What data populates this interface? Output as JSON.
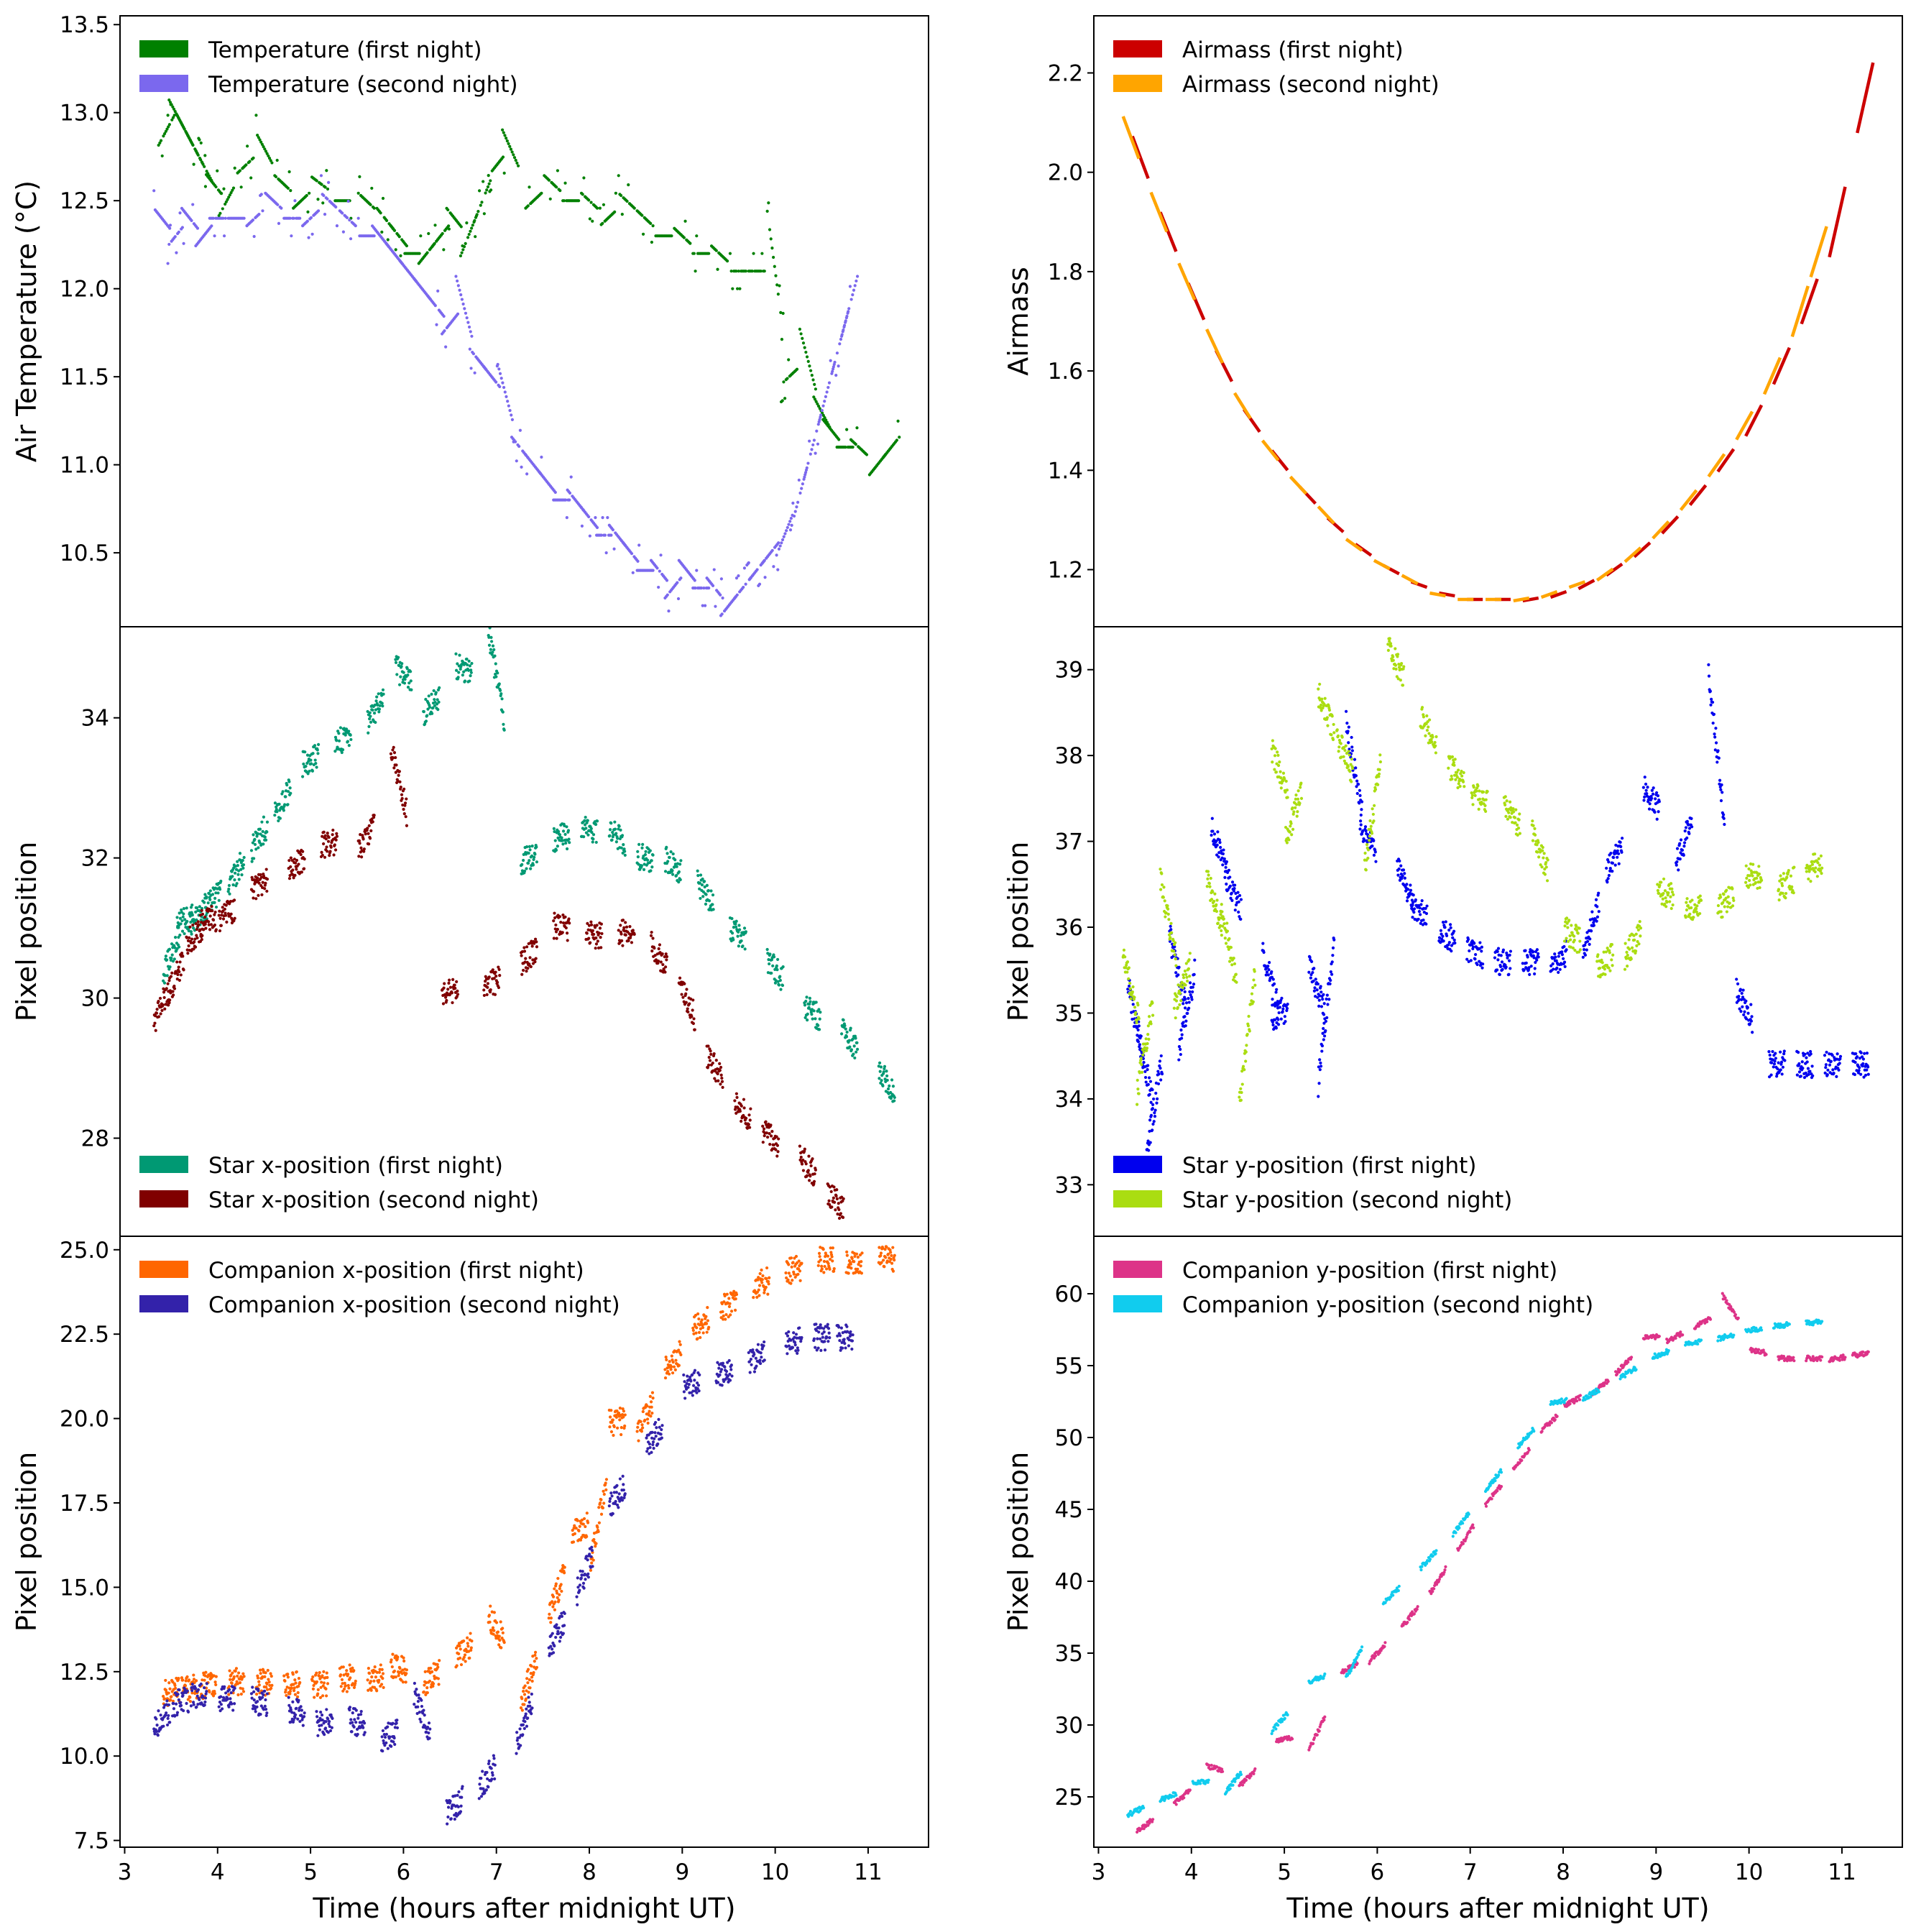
{
  "figure": {
    "xlabel": "Time (hours after midnight UT)",
    "x_ticks": [
      3,
      4,
      5,
      6,
      7,
      8,
      9,
      10,
      11
    ],
    "x_range": [
      2.95,
      11.65
    ]
  },
  "chart_data": [
    {
      "id": "temperature",
      "type": "scatter",
      "ylabel": "Air Temperature (°C)",
      "ylim": [
        10.08,
        13.55
      ],
      "y_ticks": [
        10.5,
        11.0,
        11.5,
        12.0,
        12.5,
        13.0,
        13.5
      ],
      "legend_position": "top-left",
      "series": [
        {
          "name": "Temperature (first night)",
          "color": "#008000",
          "x": [
            3.45,
            3.55,
            3.65,
            3.75,
            3.85,
            3.95,
            4.1,
            4.3,
            4.5,
            4.7,
            4.9,
            5.1,
            5.35,
            5.6,
            5.8,
            5.95,
            6.1,
            6.25,
            6.4,
            6.55,
            6.7,
            6.85,
            7.0,
            7.15,
            7.4,
            7.6,
            7.8,
            8.0,
            8.2,
            8.4,
            8.6,
            8.8,
            9.0,
            9.2,
            9.4,
            9.6,
            9.8,
            10.0,
            10.15,
            10.35,
            10.5,
            10.6,
            10.75,
            10.9,
            11.1,
            11.25
          ],
          "y": [
            12.9,
            13.0,
            12.9,
            12.8,
            12.7,
            12.6,
            12.5,
            12.7,
            12.8,
            12.6,
            12.5,
            12.6,
            12.5,
            12.5,
            12.4,
            12.3,
            12.2,
            12.2,
            12.3,
            12.4,
            12.3,
            12.5,
            12.7,
            12.8,
            12.5,
            12.6,
            12.5,
            12.5,
            12.4,
            12.5,
            12.4,
            12.3,
            12.3,
            12.2,
            12.2,
            12.1,
            12.1,
            12.1,
            11.5,
            11.6,
            11.3,
            11.2,
            11.1,
            11.1,
            11.0,
            11.1
          ]
        },
        {
          "name": "Temperature (second night)",
          "color": "#7b68ee",
          "x": [
            3.4,
            3.55,
            3.7,
            3.85,
            4.0,
            4.2,
            4.4,
            4.6,
            4.8,
            5.0,
            5.2,
            5.4,
            5.6,
            5.75,
            5.9,
            6.05,
            6.2,
            6.35,
            6.5,
            6.65,
            6.8,
            6.95,
            7.1,
            7.25,
            7.4,
            7.55,
            7.7,
            7.85,
            8.0,
            8.15,
            8.3,
            8.45,
            8.6,
            8.75,
            8.9,
            9.05,
            9.2,
            9.35,
            9.5,
            9.65,
            9.8,
            9.95,
            10.1,
            10.25,
            10.4,
            10.55,
            10.7,
            10.8
          ],
          "y": [
            12.4,
            12.3,
            12.4,
            12.3,
            12.4,
            12.4,
            12.4,
            12.5,
            12.4,
            12.4,
            12.5,
            12.4,
            12.3,
            12.3,
            12.2,
            12.1,
            12.0,
            11.9,
            11.8,
            11.9,
            11.6,
            11.5,
            11.4,
            11.1,
            11.0,
            10.9,
            10.8,
            10.8,
            10.7,
            10.6,
            10.6,
            10.5,
            10.4,
            10.4,
            10.3,
            10.4,
            10.3,
            10.3,
            10.2,
            10.3,
            10.4,
            10.5,
            10.6,
            10.8,
            11.1,
            11.4,
            11.7,
            11.9
          ]
        }
      ]
    },
    {
      "id": "airmass",
      "type": "line",
      "ylabel": "Airmass",
      "ylim": [
        1.085,
        2.315
      ],
      "y_ticks": [
        1.2,
        1.4,
        1.6,
        1.8,
        2.0,
        2.2
      ],
      "legend_position": "top-left",
      "series": [
        {
          "name": "Airmass (first night)",
          "color": "#cc0000",
          "x": [
            3.45,
            3.75,
            4.05,
            4.35,
            4.65,
            4.95,
            5.25,
            5.55,
            5.85,
            6.15,
            6.45,
            6.75,
            7.05,
            7.35,
            7.65,
            7.95,
            8.25,
            8.55,
            8.85,
            9.15,
            9.45,
            9.75,
            10.05,
            10.35,
            10.65,
            10.95,
            11.25
          ],
          "y": [
            2.03,
            1.88,
            1.74,
            1.61,
            1.5,
            1.42,
            1.35,
            1.29,
            1.24,
            1.2,
            1.17,
            1.15,
            1.14,
            1.14,
            1.14,
            1.15,
            1.17,
            1.2,
            1.24,
            1.29,
            1.35,
            1.42,
            1.5,
            1.61,
            1.74,
            1.9,
            2.15
          ]
        },
        {
          "name": "Airmass (second night)",
          "color": "#ffa500",
          "x": [
            3.35,
            3.65,
            3.95,
            4.25,
            4.55,
            4.85,
            5.15,
            5.45,
            5.75,
            6.05,
            6.35,
            6.65,
            6.95,
            7.25,
            7.55,
            7.85,
            8.15,
            8.45,
            8.75,
            9.05,
            9.35,
            9.65,
            9.95,
            10.25,
            10.55,
            10.75
          ],
          "y": [
            2.07,
            1.92,
            1.78,
            1.65,
            1.53,
            1.44,
            1.37,
            1.31,
            1.25,
            1.21,
            1.18,
            1.15,
            1.14,
            1.14,
            1.14,
            1.15,
            1.17,
            1.19,
            1.23,
            1.28,
            1.34,
            1.41,
            1.49,
            1.59,
            1.72,
            1.84
          ]
        }
      ]
    },
    {
      "id": "star_x",
      "type": "scatter",
      "ylabel": "Pixel position",
      "ylim": [
        26.6,
        35.3
      ],
      "y_ticks": [
        28,
        30,
        32,
        34
      ],
      "legend_position": "bottom-left",
      "series": [
        {
          "name": "Star x-position (first night)",
          "color": "#009973",
          "x": [
            3.5,
            3.65,
            3.8,
            3.95,
            4.2,
            4.45,
            4.7,
            5.0,
            5.35,
            5.7,
            6.0,
            6.3,
            6.65,
            7.0,
            7.35,
            7.7,
            8.0,
            8.3,
            8.6,
            8.9,
            9.25,
            9.6,
            10.0,
            10.4,
            10.8,
            11.2
          ],
          "y": [
            30.6,
            31.1,
            31.2,
            31.4,
            31.8,
            32.3,
            32.8,
            33.4,
            33.7,
            34.1,
            34.6,
            34.2,
            34.7,
            34.6,
            32.0,
            32.3,
            32.4,
            32.3,
            32.0,
            31.9,
            31.5,
            30.9,
            30.4,
            29.8,
            29.4,
            28.8
          ]
        },
        {
          "name": "Star x-position (second night)",
          "color": "#800000",
          "x": [
            3.4,
            3.55,
            3.75,
            3.9,
            4.1,
            4.45,
            4.85,
            5.2,
            5.6,
            5.95,
            6.5,
            6.95,
            7.35,
            7.7,
            8.05,
            8.4,
            8.75,
            9.05,
            9.35,
            9.65,
            9.95,
            10.35,
            10.65
          ],
          "y": [
            29.9,
            30.3,
            30.9,
            31.1,
            31.2,
            31.6,
            31.9,
            32.2,
            32.3,
            33.1,
            30.1,
            30.2,
            30.6,
            31.0,
            30.9,
            30.9,
            30.6,
            30.0,
            29.0,
            28.4,
            28.0,
            27.6,
            27.1
          ]
        }
      ]
    },
    {
      "id": "star_y",
      "type": "scatter",
      "ylabel": "Pixel position",
      "ylim": [
        32.4,
        39.5
      ],
      "y_ticks": [
        33,
        34,
        35,
        36,
        37,
        38,
        39
      ],
      "legend_position": "bottom-left",
      "series": [
        {
          "name": "Star y-position (first night)",
          "color": "#0000ee",
          "x": [
            3.4,
            3.5,
            3.6,
            3.85,
            3.95,
            4.3,
            4.45,
            4.85,
            4.95,
            5.35,
            5.45,
            5.75,
            5.9,
            6.3,
            6.45,
            6.75,
            7.05,
            7.35,
            7.65,
            7.95,
            8.3,
            8.55,
            8.95,
            9.3,
            9.65,
            9.95,
            10.3,
            10.6,
            10.9,
            11.2
          ],
          "y": [
            34.9,
            34.4,
            33.9,
            35.5,
            35.0,
            36.9,
            36.4,
            35.4,
            35.0,
            35.3,
            35.0,
            37.9,
            37.0,
            36.5,
            36.2,
            35.9,
            35.7,
            35.6,
            35.6,
            35.6,
            36.0,
            36.8,
            37.5,
            37.0,
            38.1,
            35.1,
            34.4,
            34.4,
            34.4,
            34.4
          ]
        },
        {
          "name": "Star y-position (second night)",
          "color": "#aadd11",
          "x": [
            3.35,
            3.5,
            3.75,
            3.9,
            4.25,
            4.4,
            4.6,
            4.95,
            5.1,
            5.45,
            5.65,
            5.95,
            6.2,
            6.55,
            6.85,
            7.1,
            7.45,
            7.75,
            8.1,
            8.45,
            8.75,
            9.1,
            9.4,
            9.75,
            10.05,
            10.4,
            10.7
          ],
          "y": [
            35.3,
            34.6,
            36.1,
            35.3,
            36.3,
            35.8,
            34.7,
            37.8,
            37.3,
            38.5,
            38.0,
            37.3,
            39.1,
            38.3,
            37.8,
            37.5,
            37.3,
            36.9,
            35.9,
            35.6,
            35.8,
            36.4,
            36.2,
            36.3,
            36.6,
            36.5,
            36.7
          ]
        }
      ]
    },
    {
      "id": "companion_x",
      "type": "scatter",
      "ylabel": "Pixel position",
      "ylim": [
        7.3,
        25.4
      ],
      "y_ticks": [
        7.5,
        10.0,
        12.5,
        15.0,
        17.5,
        20.0,
        22.5,
        25.0
      ],
      "legend_position": "top-left",
      "series": [
        {
          "name": "Companion x-position (first night)",
          "color": "#ff6600",
          "x": [
            3.5,
            3.7,
            3.9,
            4.2,
            4.5,
            4.8,
            5.1,
            5.4,
            5.7,
            5.95,
            6.3,
            6.65,
            7.0,
            7.35,
            7.65,
            7.9,
            8.1,
            8.3,
            8.6,
            8.9,
            9.2,
            9.5,
            9.85,
            10.2,
            10.55,
            10.85,
            11.2
          ],
          "y": [
            11.9,
            12.0,
            12.1,
            12.2,
            12.2,
            12.1,
            12.1,
            12.3,
            12.3,
            12.6,
            12.3,
            13.1,
            13.8,
            12.3,
            14.8,
            16.7,
            17.0,
            19.9,
            20.0,
            21.7,
            22.8,
            23.4,
            24.0,
            24.4,
            24.7,
            24.7,
            24.7
          ]
        },
        {
          "name": "Companion x-position (second night)",
          "color": "#3322aa",
          "x": [
            3.4,
            3.6,
            3.8,
            4.1,
            4.45,
            4.85,
            5.15,
            5.5,
            5.85,
            6.2,
            6.55,
            6.9,
            7.3,
            7.65,
            7.95,
            8.3,
            8.7,
            9.1,
            9.45,
            9.8,
            10.2,
            10.5,
            10.75
          ],
          "y": [
            11.1,
            11.6,
            11.8,
            11.7,
            11.6,
            11.3,
            11.0,
            11.0,
            10.6,
            11.2,
            8.5,
            9.4,
            11.0,
            13.6,
            15.4,
            17.7,
            19.5,
            21.0,
            21.4,
            21.8,
            22.3,
            22.4,
            22.4
          ]
        }
      ]
    },
    {
      "id": "companion_y",
      "type": "scatter",
      "ylabel": "Pixel position",
      "ylim": [
        21.5,
        64.0
      ],
      "y_ticks": [
        25,
        30,
        35,
        40,
        45,
        50,
        55,
        60
      ],
      "legend_position": "top-left",
      "series": [
        {
          "name": "Companion y-position (first night)",
          "color": "#dd3388",
          "x": [
            3.5,
            3.9,
            4.25,
            4.6,
            5.0,
            5.35,
            5.7,
            6.0,
            6.35,
            6.65,
            6.95,
            7.25,
            7.55,
            7.85,
            8.1,
            8.4,
            8.65,
            8.95,
            9.2,
            9.5,
            9.8,
            10.1,
            10.4,
            10.7,
            10.95,
            11.2
          ],
          "y": [
            23.0,
            25.0,
            27.0,
            26.3,
            29.0,
            29.4,
            34.0,
            35.0,
            37.5,
            40.0,
            43.0,
            46.0,
            48.5,
            51.0,
            52.5,
            53.5,
            55.0,
            57.0,
            57.0,
            58.0,
            59.0,
            56.0,
            55.5,
            55.5,
            55.5,
            55.8
          ]
        },
        {
          "name": "Companion y-position (second night)",
          "color": "#11ccee",
          "x": [
            3.4,
            3.75,
            4.1,
            4.45,
            4.95,
            5.35,
            5.75,
            6.15,
            6.55,
            6.9,
            7.25,
            7.6,
            7.95,
            8.3,
            8.7,
            9.05,
            9.4,
            9.75,
            10.05,
            10.35,
            10.7
          ],
          "y": [
            24.0,
            25.0,
            26.0,
            26.0,
            30.2,
            33.2,
            34.3,
            39.0,
            41.5,
            44.0,
            47.0,
            50.0,
            52.5,
            53.0,
            54.5,
            55.8,
            56.6,
            57.0,
            57.5,
            57.8,
            58.0
          ]
        }
      ]
    }
  ]
}
